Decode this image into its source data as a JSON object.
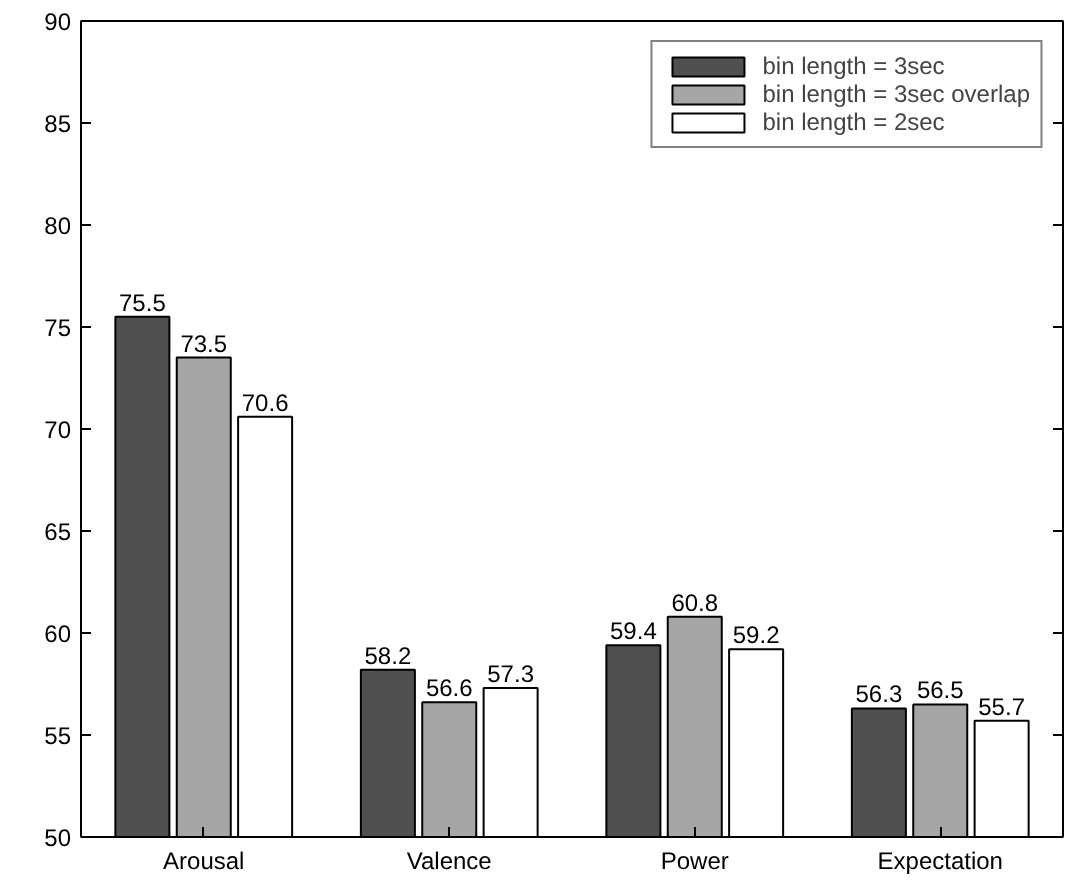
{
  "chart_data": {
    "type": "bar",
    "categories": [
      "Arousal",
      "Valence",
      "Power",
      "Expectation"
    ],
    "series": [
      {
        "name": "bin length = 3sec",
        "color": "#505050",
        "values": [
          75.5,
          58.2,
          59.4,
          56.3
        ]
      },
      {
        "name": "bin length = 3sec overlap",
        "color": "#a6a6a6",
        "values": [
          73.5,
          56.6,
          60.8,
          56.5
        ]
      },
      {
        "name": "bin length = 2sec",
        "color": "#ffffff",
        "values": [
          70.6,
          57.3,
          59.2,
          55.7
        ]
      }
    ],
    "ylim": [
      50,
      90
    ],
    "yticks": [
      50,
      55,
      60,
      65,
      70,
      75,
      80,
      85,
      90
    ],
    "grid": false,
    "legend": "top right",
    "data_labels": true
  }
}
